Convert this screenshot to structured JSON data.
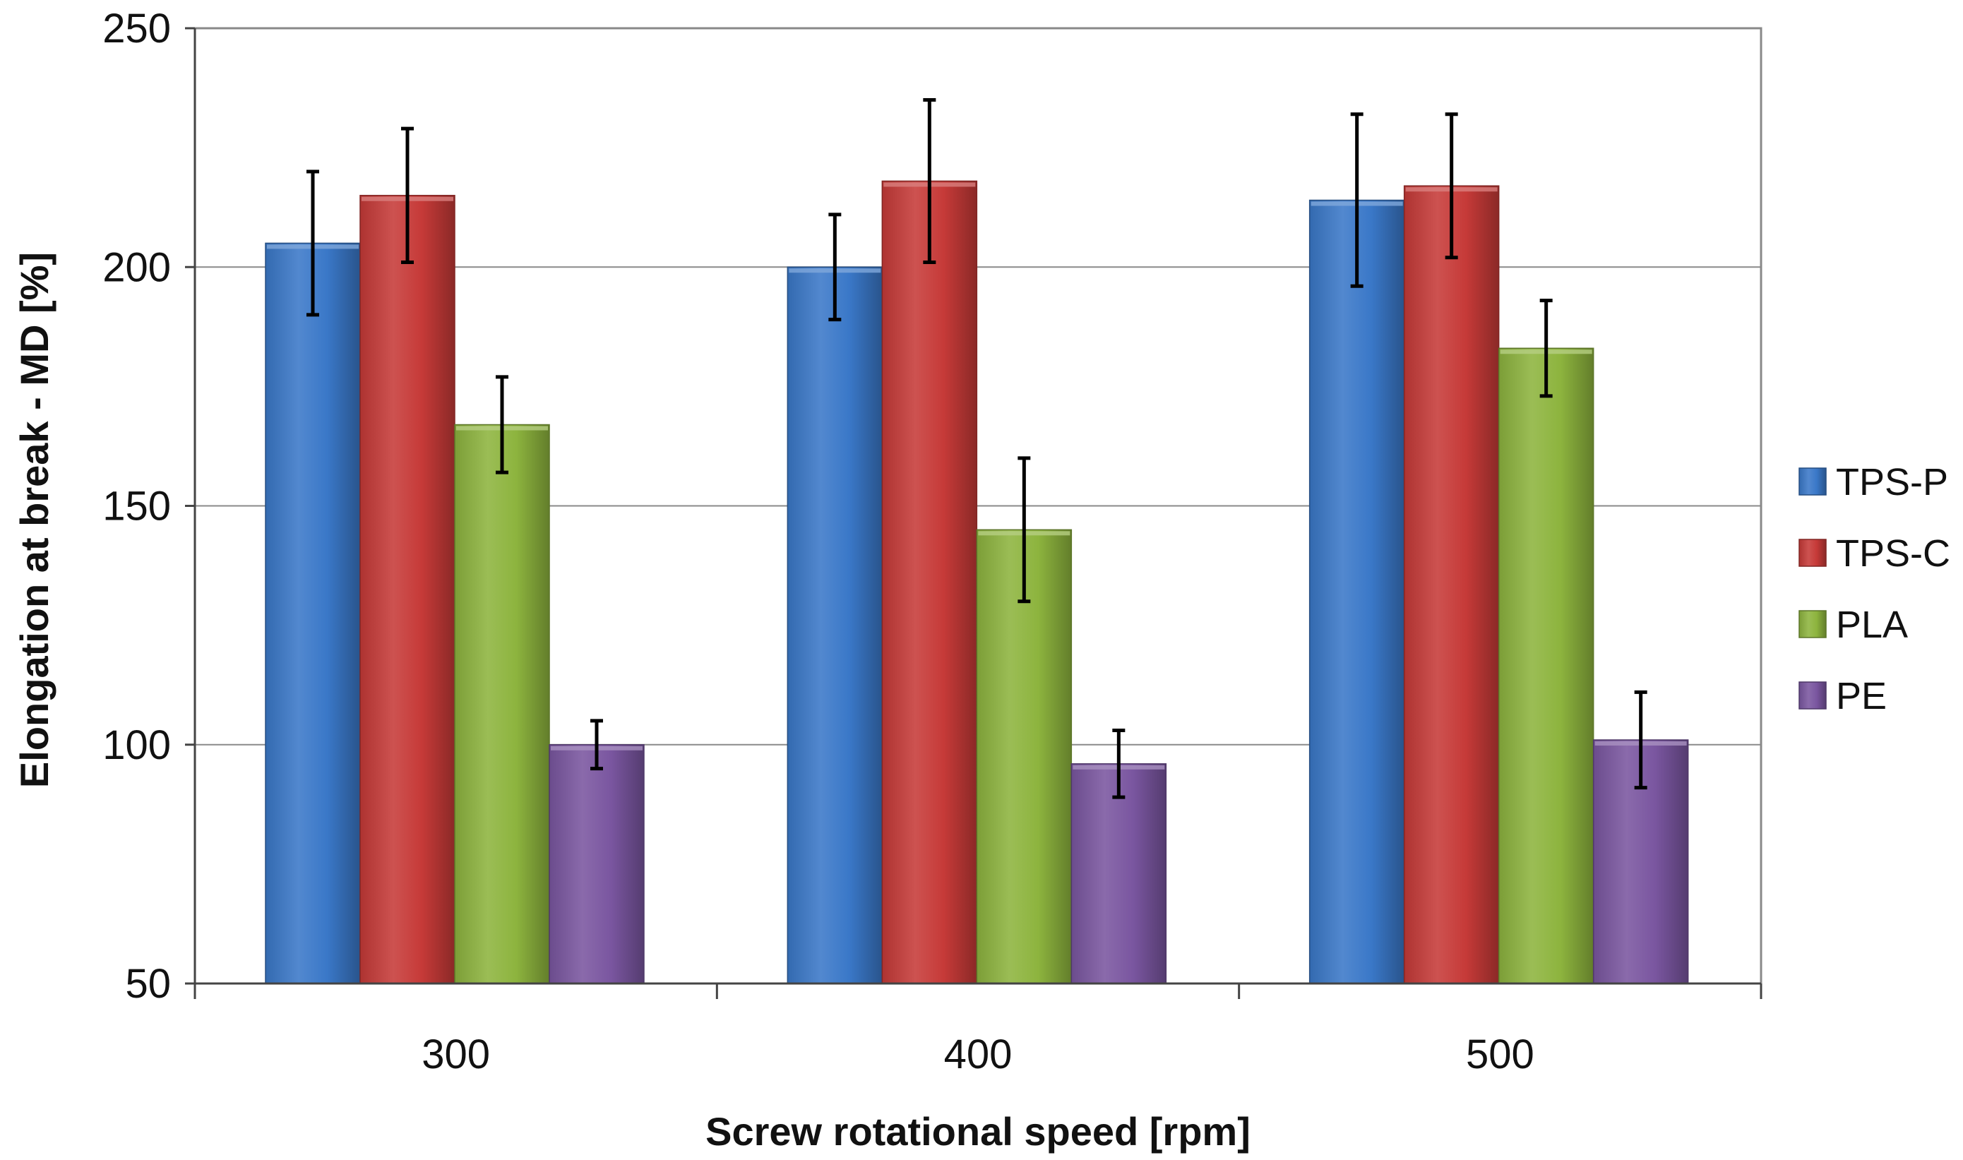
{
  "chart_data": {
    "type": "bar",
    "title": "",
    "xlabel": "Screw rotational speed [rpm]",
    "ylabel": "Elongation at break - MD [%]",
    "ylim": [
      50,
      250
    ],
    "yticks": [
      "50",
      "100",
      "150",
      "200",
      "250"
    ],
    "ytick_values": [
      50,
      100,
      150,
      200,
      250
    ],
    "grid": true,
    "legend_position": "right",
    "categories": [
      "300",
      "400",
      "500"
    ],
    "series": [
      {
        "name": "TPS-P",
        "color": "#3A78C8",
        "values": [
          205,
          200,
          214
        ],
        "errors": [
          15,
          11,
          18
        ]
      },
      {
        "name": "TPS-C",
        "color": "#C63A38",
        "values": [
          215,
          218,
          217
        ],
        "errors": [
          14,
          17,
          15
        ]
      },
      {
        "name": "PLA",
        "color": "#8DB43E",
        "values": [
          167,
          145,
          183
        ],
        "errors": [
          10,
          15,
          10
        ]
      },
      {
        "name": "PE",
        "color": "#7A56A0",
        "values": [
          100,
          96,
          101
        ],
        "errors": [
          5,
          7,
          10
        ]
      }
    ]
  }
}
